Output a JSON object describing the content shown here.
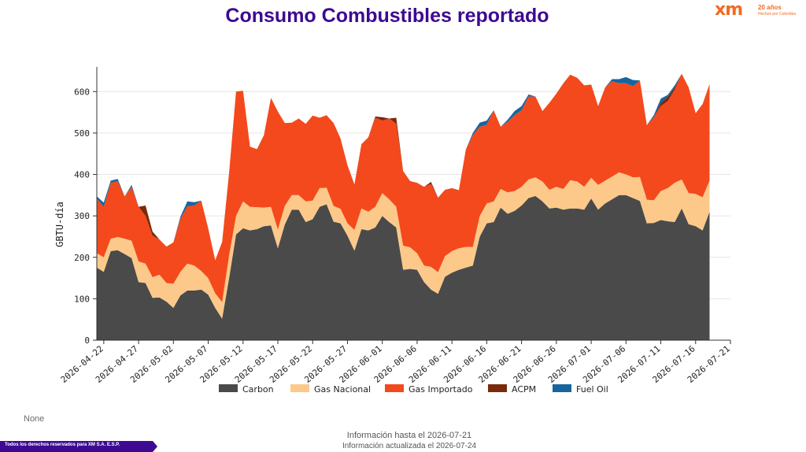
{
  "page": {
    "title": "Consumo Combustibles reportado",
    "logo_mark": "xm",
    "logo_line1": "20 años",
    "logo_line2": "Hechos por Colombia",
    "none_label": "None",
    "footer_rights": "Todos los derechos reservados para XM S.A. E.S.P.",
    "info_hasta": "Información hasta el 2026-07-21",
    "info_actualizada": "Información actualizada el 2026-07-24"
  },
  "colors": {
    "title": "#3d0a91",
    "brand_orange": "#f26a21",
    "footer_band": "#3d0a91"
  },
  "chart_data": {
    "type": "area",
    "stacked": true,
    "ylabel": "GBTU-día",
    "xlabel": "",
    "ylim": [
      0,
      650
    ],
    "yticks": [
      0,
      100,
      200,
      300,
      400,
      500,
      600
    ],
    "grid": "horizontal",
    "legend_position": "bottom",
    "start_date": "2026-04-21",
    "end_date": "2026-07-21",
    "xtick_labels": [
      "2026-04-22",
      "2026-04-27",
      "2026-05-02",
      "2026-05-07",
      "2026-05-12",
      "2026-05-17",
      "2026-05-22",
      "2026-05-27",
      "2026-06-01",
      "2026-06-06",
      "2026-06-11",
      "2026-06-16",
      "2026-06-21",
      "2026-06-26",
      "2026-07-01",
      "2026-07-06",
      "2026-07-11",
      "2026-07-16",
      "2026-07-21"
    ],
    "series": [
      {
        "name": "Carbon",
        "color": "#4a4a4a",
        "values": [
          175,
          165,
          215,
          217,
          208,
          198,
          140,
          138,
          102,
          103,
          93,
          78,
          108,
          120,
          120,
          122,
          110,
          78,
          52,
          150,
          255,
          270,
          265,
          268,
          275,
          277,
          222,
          279,
          315,
          315,
          285,
          292,
          322,
          328,
          286,
          282,
          252,
          216,
          268,
          265,
          272,
          300,
          285,
          272,
          170,
          172,
          170,
          140,
          122,
          112,
          153,
          163,
          170,
          175,
          180,
          250,
          282,
          285,
          320,
          305,
          312,
          325,
          343,
          348,
          335,
          318,
          320,
          315,
          318,
          318,
          315,
          342,
          315,
          330,
          340,
          350,
          350,
          343,
          336,
          282,
          283,
          290,
          287,
          285,
          318,
          280,
          275,
          265,
          310
        ]
      },
      {
        "name": "Gas Nacional",
        "color": "#fcc98a",
        "values": [
          35,
          35,
          30,
          32,
          37,
          42,
          50,
          47,
          50,
          55,
          45,
          58,
          57,
          65,
          60,
          45,
          40,
          35,
          40,
          55,
          45,
          65,
          57,
          53,
          45,
          45,
          45,
          45,
          35,
          35,
          50,
          45,
          45,
          40,
          38,
          35,
          30,
          50,
          50,
          45,
          50,
          55,
          55,
          50,
          58,
          52,
          40,
          40,
          55,
          52,
          50,
          52,
          52,
          50,
          45,
          50,
          48,
          50,
          45,
          52,
          48,
          45,
          45,
          45,
          48,
          45,
          50,
          50,
          68,
          65,
          55,
          50,
          60,
          55,
          55,
          55,
          50,
          50,
          58,
          57,
          55,
          70,
          80,
          95,
          70,
          75,
          78,
          80,
          75
        ]
      },
      {
        "name": "Gas Importado",
        "color": "#f4491c",
        "values": [
          132,
          122,
          135,
          135,
          102,
          130,
          132,
          115,
          100,
          85,
          88,
          100,
          128,
          138,
          145,
          170,
          120,
          80,
          145,
          200,
          300,
          267,
          145,
          140,
          175,
          263,
          285,
          200,
          175,
          185,
          187,
          205,
          170,
          175,
          200,
          170,
          140,
          110,
          155,
          180,
          215,
          175,
          195,
          200,
          180,
          160,
          170,
          190,
          200,
          180,
          160,
          152,
          140,
          235,
          270,
          215,
          190,
          220,
          150,
          170,
          183,
          185,
          200,
          195,
          170,
          210,
          225,
          255,
          255,
          250,
          245,
          225,
          190,
          225,
          230,
          215,
          220,
          220,
          233,
          180,
          200,
          205,
          210,
          225,
          255,
          255,
          195,
          225,
          233
        ]
      },
      {
        "name": "ACPM",
        "color": "#7a2a0a",
        "values": [
          0,
          0,
          0,
          0,
          0,
          0,
          0,
          25,
          10,
          0,
          0,
          0,
          0,
          0,
          0,
          0,
          0,
          0,
          0,
          0,
          0,
          0,
          0,
          0,
          0,
          0,
          0,
          0,
          0,
          0,
          0,
          0,
          0,
          0,
          0,
          0,
          0,
          0,
          0,
          0,
          3,
          8,
          0,
          15,
          0,
          0,
          0,
          0,
          5,
          0,
          0,
          0,
          0,
          0,
          0,
          0,
          0,
          0,
          0,
          0,
          0,
          0,
          0,
          0,
          0,
          0,
          0,
          0,
          0,
          0,
          0,
          0,
          0,
          0,
          0,
          0,
          0,
          0,
          0,
          0,
          0,
          8,
          10,
          5,
          0,
          0,
          0,
          0,
          0
        ]
      },
      {
        "name": "Fuel Oil",
        "color": "#17659e",
        "values": [
          5,
          10,
          5,
          5,
          0,
          5,
          0,
          0,
          0,
          0,
          0,
          0,
          5,
          12,
          8,
          0,
          0,
          0,
          0,
          0,
          0,
          0,
          0,
          0,
          0,
          0,
          0,
          0,
          0,
          0,
          0,
          0,
          0,
          0,
          0,
          0,
          0,
          0,
          0,
          0,
          0,
          0,
          0,
          0,
          0,
          0,
          0,
          0,
          0,
          0,
          0,
          0,
          0,
          0,
          5,
          10,
          10,
          0,
          0,
          5,
          10,
          10,
          5,
          0,
          0,
          0,
          0,
          0,
          0,
          0,
          0,
          0,
          0,
          0,
          5,
          10,
          15,
          15,
          0,
          0,
          5,
          10,
          5,
          5,
          0,
          0,
          0,
          0,
          0
        ]
      }
    ]
  }
}
